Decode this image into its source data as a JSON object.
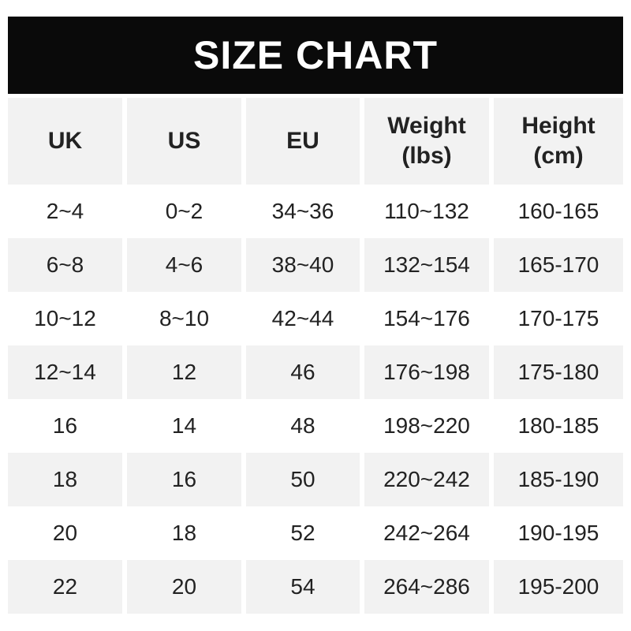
{
  "colors": {
    "header_bar_bg": "#0a0a0a",
    "title_text": "#ffffff",
    "shaded_bg": "#f2f2f2",
    "text_color": "#222222"
  },
  "chart_data": {
    "type": "table",
    "title": "SIZE CHART",
    "legend_position": "none",
    "grid": "off",
    "columns": [
      {
        "key": "uk",
        "label": "UK",
        "unit": ""
      },
      {
        "key": "us",
        "label": "US",
        "unit": ""
      },
      {
        "key": "eu",
        "label": "EU",
        "unit": ""
      },
      {
        "key": "weight",
        "label": "Weight",
        "unit": "(lbs)"
      },
      {
        "key": "height",
        "label": "Height",
        "unit": "(cm)"
      }
    ],
    "rows": [
      [
        "2~4",
        "0~2",
        "34~36",
        "110~132",
        "160-165"
      ],
      [
        "6~8",
        "4~6",
        "38~40",
        "132~154",
        "165-170"
      ],
      [
        "10~12",
        "8~10",
        "42~44",
        "154~176",
        "170-175"
      ],
      [
        "12~14",
        "12",
        "46",
        "176~198",
        "175-180"
      ],
      [
        "16",
        "14",
        "48",
        "198~220",
        "180-185"
      ],
      [
        "18",
        "16",
        "50",
        "220~242",
        "185-190"
      ],
      [
        "20",
        "18",
        "52",
        "242~264",
        "190-195"
      ],
      [
        "22",
        "20",
        "54",
        "264~286",
        "195-200"
      ]
    ]
  }
}
